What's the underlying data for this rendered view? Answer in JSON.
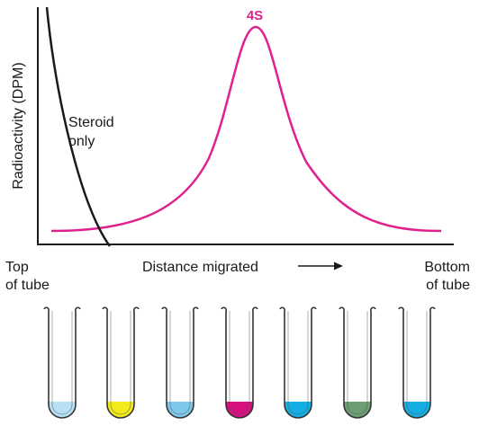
{
  "plot": {
    "ylabel": "Radioactivity (DPM)",
    "xlabel": "Distance migrated",
    "left_label": [
      "Top",
      "of tube"
    ],
    "right_label": [
      "Bottom",
      "of tube"
    ],
    "steroid_label": [
      "Steroid",
      "only"
    ],
    "peak_label": "4S",
    "colors": {
      "axis": "#1a1a1a",
      "steroid_curve": "#1a1a1a",
      "complex_curve": "#e0208e"
    }
  },
  "chart_data": {
    "type": "line",
    "xlabel": "Distance migrated",
    "ylabel": "Radioactivity (DPM)",
    "series": [
      {
        "name": "Steroid only",
        "color": "#1a1a1a",
        "points": [
          [
            0.0,
            1.0
          ],
          [
            0.05,
            0.66
          ],
          [
            0.1,
            0.4
          ],
          [
            0.15,
            0.17
          ],
          [
            0.18,
            0.0
          ]
        ]
      },
      {
        "name": "4S",
        "color": "#e0208e",
        "points": [
          [
            0.0,
            0.05
          ],
          [
            0.15,
            0.08
          ],
          [
            0.25,
            0.17
          ],
          [
            0.35,
            0.39
          ],
          [
            0.42,
            0.76
          ],
          [
            0.48,
            0.98
          ],
          [
            0.5,
            0.99
          ],
          [
            0.53,
            0.93
          ],
          [
            0.6,
            0.58
          ],
          [
            0.68,
            0.32
          ],
          [
            0.78,
            0.15
          ],
          [
            0.9,
            0.06
          ],
          [
            1.0,
            0.05
          ]
        ]
      }
    ]
  },
  "tubes": [
    {
      "fill_color": "#b8e0f4"
    },
    {
      "fill_color": "#f2ea1a"
    },
    {
      "fill_color": "#7ec8ec"
    },
    {
      "fill_color": "#d6107e"
    },
    {
      "fill_color": "#14aee4"
    },
    {
      "fill_color": "#6b9e72"
    },
    {
      "fill_color": "#14aee4"
    }
  ]
}
